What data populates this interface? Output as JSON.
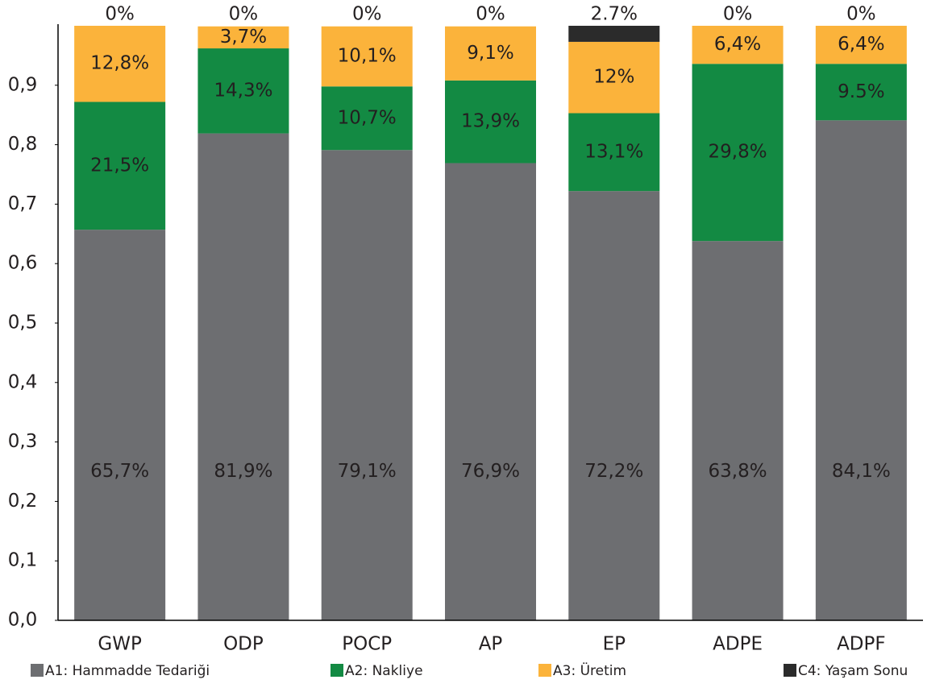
{
  "chart_data": {
    "type": "stacked_bar",
    "categories": [
      "GWP",
      "ODP",
      "POCP",
      "AP",
      "EP",
      "ADPE",
      "ADPF"
    ],
    "series": [
      {
        "name": "A1: Hammadde Tedariği",
        "color": "#6d6e71",
        "values": [
          0.657,
          0.819,
          0.791,
          0.769,
          0.722,
          0.638,
          0.841
        ],
        "value_labels": [
          "65,7%",
          "81,9%",
          "79,1%",
          "76,9%",
          "72,2%",
          "63,8%",
          "84,1%"
        ]
      },
      {
        "name": "A2: Nakliye",
        "color": "#138a43",
        "values": [
          0.215,
          0.143,
          0.107,
          0.139,
          0.131,
          0.298,
          0.095
        ],
        "value_labels": [
          "21,5%",
          "14,3%",
          "10,7%",
          "13,9%",
          "13,1%",
          "29,8%",
          "9.5%"
        ]
      },
      {
        "name": "A3: Üretim",
        "color": "#fbb33b",
        "values": [
          0.128,
          0.037,
          0.101,
          0.091,
          0.12,
          0.064,
          0.064
        ],
        "value_labels": [
          "12,8%",
          "3,7%",
          "10,1%",
          "9,1%",
          "12%",
          "6,4%",
          "6,4%"
        ]
      },
      {
        "name": "C4: Yaşam Sonu",
        "color": "#2b2b2b",
        "values": [
          0,
          0,
          0,
          0,
          0.027,
          0,
          0
        ],
        "value_labels": [
          "0%",
          "0%",
          "0%",
          "0%",
          "2.7%",
          "0%",
          "0%"
        ]
      }
    ],
    "ylim": [
      0,
      1
    ],
    "yticks": [
      {
        "value": 0,
        "label": "0,0"
      },
      {
        "value": 0.1,
        "label": "0,1"
      },
      {
        "value": 0.2,
        "label": "0,2"
      },
      {
        "value": 0.3,
        "label": "0,3"
      },
      {
        "value": 0.4,
        "label": "0,4"
      },
      {
        "value": 0.5,
        "label": "0,5"
      },
      {
        "value": 0.6,
        "label": "0,6"
      },
      {
        "value": 0.7,
        "label": "0,7"
      },
      {
        "value": 0.8,
        "label": "0,8"
      },
      {
        "value": 0.9,
        "label": "0,9"
      }
    ],
    "grid": false
  }
}
